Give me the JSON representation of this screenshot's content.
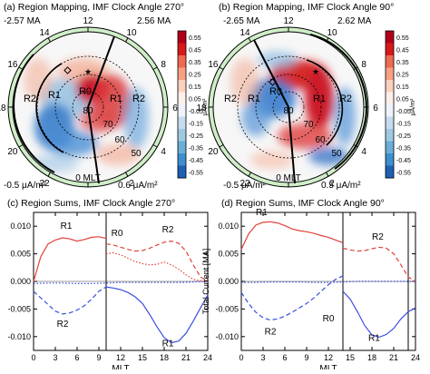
{
  "panels": {
    "a": {
      "title": "(a) Region Mapping, IMF Clock Angle 270°",
      "top_left": "-2.57 MA",
      "top_right": "2.56 MA",
      "bottom_left": "-0.5 μA/m²",
      "bottom_right": "0.6 μA/m²",
      "mlt_zero": "0 MLT",
      "clock_labels": [
        "12",
        "10",
        "8",
        "6",
        "4",
        "2",
        "0",
        "22",
        "20",
        "18",
        "16",
        "14"
      ],
      "lat_labels": [
        "80",
        "70",
        "60",
        "50"
      ],
      "region_labels": [
        "R2",
        "R1",
        "R0",
        "R1",
        "R2"
      ]
    },
    "b": {
      "title": "(b) Region Mapping, IMF Clock Angle 90°",
      "top_left": "-2.65 MA",
      "top_right": "2.62 MA",
      "bottom_left": "-0.5 μA/m²",
      "bottom_right": "0.5 μA/m²",
      "mlt_zero": "0 MLT",
      "clock_labels": [
        "12",
        "10",
        "8",
        "6",
        "4",
        "2",
        "0",
        "22",
        "20",
        "18",
        "16",
        "14"
      ],
      "lat_labels": [
        "80",
        "70",
        "60",
        "50"
      ],
      "region_labels": [
        "R2",
        "R1",
        "R0",
        "R1",
        "R2"
      ]
    },
    "colorbar": {
      "ticks": [
        "0.55",
        "0.45",
        "0.35",
        "0.25",
        "0.15",
        "0.05",
        "-0.05",
        "-0.15",
        "-0.25",
        "-0.35",
        "-0.45",
        "-0.55"
      ],
      "unit": "μA/m²",
      "colors": [
        "#b2001a",
        "#d7191c",
        "#ef6a4f",
        "#f7a083",
        "#fbd0bd",
        "#fdf0ea",
        "#eef3fb",
        "#c6dbef",
        "#9ecae1",
        "#6baed6",
        "#3d8fcf",
        "#1f5fb4"
      ]
    },
    "c": {
      "title": "(c) Region Sums, IMF Clock Angle 270°"
    },
    "d": {
      "title": "(d) Region Sums, IMF Clock Angle 90°"
    }
  },
  "chart_data": [
    {
      "type": "line",
      "title": "(c) Region Sums, IMF Clock Angle 270°",
      "xlabel": "MLT",
      "ylabel": "",
      "xlim": [
        0,
        24
      ],
      "ylim": [
        -0.0125,
        0.0125
      ],
      "xticks": [
        "0",
        "3",
        "6",
        "9",
        "12",
        "15",
        "18",
        "21",
        "24"
      ],
      "yticks": [
        "0.010",
        "0.005",
        "0.000",
        "-0.005",
        "-0.010"
      ],
      "vline": 10,
      "annotations": [
        "R1",
        "R0",
        "R2",
        "R2",
        "R1"
      ],
      "series": [
        {
          "color": "#e0413a",
          "style": "solid",
          "x": [
            0,
            1,
            2,
            3,
            4,
            5,
            6,
            7,
            8,
            9,
            10
          ],
          "y": [
            0.0,
            0.0045,
            0.0068,
            0.0075,
            0.0079,
            0.0077,
            0.0073,
            0.0076,
            0.008,
            0.0081,
            0.0078
          ]
        },
        {
          "color": "#e0413a",
          "style": "dotted",
          "x": [
            10,
            11,
            12,
            13,
            14,
            15,
            16,
            17,
            18,
            19,
            20,
            21,
            22,
            23,
            24
          ],
          "y": [
            0.005,
            0.0052,
            0.0048,
            0.0042,
            0.0036,
            0.0032,
            0.003,
            0.0031,
            0.0035,
            0.003,
            0.0022,
            0.0012,
            0.0004,
            0.0001,
            0.0
          ]
        },
        {
          "color": "#e0413a",
          "style": "dashed",
          "x": [
            10,
            11,
            12,
            13,
            14,
            15,
            16,
            17,
            18,
            19,
            20,
            21,
            22,
            23,
            24
          ],
          "y": [
            0.0068,
            0.0066,
            0.0062,
            0.0058,
            0.0055,
            0.0056,
            0.006,
            0.0066,
            0.0071,
            0.0073,
            0.0069,
            0.0055,
            0.003,
            0.0008,
            0.0
          ]
        },
        {
          "color": "#3b4fe0",
          "style": "dashed",
          "x": [
            0,
            1,
            2,
            3,
            4,
            5,
            6,
            7,
            8,
            9,
            10
          ],
          "y": [
            -0.0018,
            -0.003,
            -0.0042,
            -0.0054,
            -0.0059,
            -0.0057,
            -0.0052,
            -0.0044,
            -0.0032,
            -0.0018,
            -0.001
          ]
        },
        {
          "color": "#3b4fe0",
          "style": "dotted",
          "x": [
            0,
            2,
            4,
            6,
            8,
            10,
            12,
            14,
            16,
            18,
            20,
            22,
            24
          ],
          "y": [
            -0.0004,
            -0.0003,
            -0.0003,
            -0.0004,
            -0.0004,
            -0.0003,
            -0.0002,
            -0.0002,
            -0.0002,
            -0.0002,
            -0.0002,
            -0.0001,
            0.0
          ]
        },
        {
          "color": "#3b4fe0",
          "style": "solid",
          "x": [
            10,
            11,
            12,
            13,
            14,
            15,
            16,
            17,
            18,
            19,
            20,
            21,
            22,
            23,
            24
          ],
          "y": [
            -0.001,
            -0.0012,
            -0.0015,
            -0.002,
            -0.0028,
            -0.004,
            -0.006,
            -0.0082,
            -0.0102,
            -0.0111,
            -0.0108,
            -0.0094,
            -0.0072,
            -0.0048,
            -0.0025
          ]
        }
      ]
    },
    {
      "type": "line",
      "title": "(d) Region Sums, IMF Clock Angle 90°",
      "xlabel": "MLT",
      "ylabel": "Total Current [MA]",
      "xlim": [
        0,
        24
      ],
      "ylim": [
        -0.0125,
        0.0125
      ],
      "xticks": [
        "0",
        "3",
        "6",
        "9",
        "12",
        "15",
        "18",
        "21",
        "24"
      ],
      "yticks": [
        "0.010",
        "0.005",
        "0.000",
        "-0.005",
        "-0.010"
      ],
      "vlines": [
        14,
        23
      ],
      "annotations": [
        "R1",
        "R2",
        "R2",
        "R0",
        "R1"
      ],
      "series": [
        {
          "color": "#e0413a",
          "style": "solid",
          "x": [
            0,
            1,
            2,
            3,
            4,
            5,
            6,
            7,
            8,
            9,
            10,
            11,
            12,
            13,
            14
          ],
          "y": [
            0.0058,
            0.0086,
            0.0102,
            0.0107,
            0.0108,
            0.0106,
            0.0101,
            0.0095,
            0.0092,
            0.009,
            0.0087,
            0.0083,
            0.008,
            0.0075,
            0.007
          ]
        },
        {
          "color": "#e0413a",
          "style": "dashed",
          "x": [
            14,
            15,
            16,
            17,
            18,
            19,
            20,
            21,
            22,
            23,
            24
          ],
          "y": [
            0.006,
            0.0057,
            0.0055,
            0.0056,
            0.0059,
            0.0062,
            0.006,
            0.005,
            0.003,
            0.0008,
            0.0
          ]
        },
        {
          "color": "#3b4fe0",
          "style": "dashed",
          "x": [
            0,
            1,
            2,
            3,
            4,
            5,
            6,
            7,
            8,
            9,
            10,
            11,
            12,
            13,
            14
          ],
          "y": [
            -0.002,
            -0.004,
            -0.0056,
            -0.0066,
            -0.007,
            -0.0068,
            -0.0063,
            -0.0056,
            -0.0048,
            -0.004,
            -0.003,
            -0.0018,
            -0.0006,
            0.0004,
            0.001
          ]
        },
        {
          "color": "#3b4fe0",
          "style": "dotted",
          "x": [
            0,
            2,
            4,
            6,
            8,
            10,
            12,
            14,
            16,
            18,
            20,
            22,
            24
          ],
          "y": [
            -0.0002,
            -0.0002,
            -0.0001,
            -0.0001,
            -0.0001,
            -0.0002,
            -0.0002,
            -0.0001,
            0.0,
            0.0,
            0.0,
            0.0,
            0.0
          ]
        },
        {
          "color": "#3b4fe0",
          "style": "solid",
          "x": [
            14,
            15,
            16,
            17,
            18,
            19,
            20,
            21,
            22,
            23,
            24
          ],
          "y": [
            -0.0018,
            -0.0032,
            -0.0055,
            -0.008,
            -0.0097,
            -0.0101,
            -0.0096,
            -0.0085,
            -0.0068,
            -0.0055,
            -0.0048
          ]
        }
      ]
    }
  ]
}
